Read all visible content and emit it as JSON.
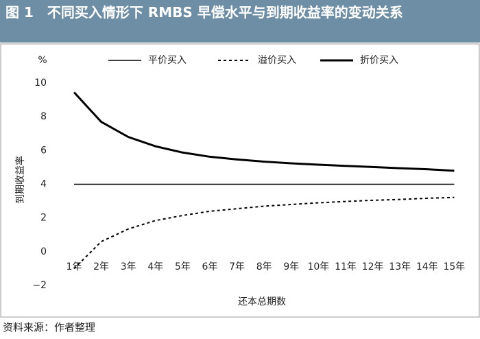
{
  "chart_data": {
    "type": "line",
    "title": "图 1　不同买入情形下 RMBS 早偿水平与到期收益率的变动关系",
    "y_unit": "%",
    "y_label": "到期收益率",
    "x_label": "还本总期数",
    "source": "资料来源：作者整理",
    "categories": [
      "1年",
      "2年",
      "3年",
      "4年",
      "5年",
      "6年",
      "7年",
      "8年",
      "9年",
      "10年",
      "11年",
      "12年",
      "13年",
      "14年",
      "15年"
    ],
    "series": [
      {
        "name": "平价买入",
        "color": "#000000",
        "dash": "solid",
        "linewidth": 1.5,
        "values": [
          4,
          4,
          4,
          4,
          4,
          4,
          4,
          4,
          4,
          4,
          4,
          4,
          4,
          4,
          4
        ]
      },
      {
        "name": "溢价买入",
        "color": "#000000",
        "dash": "dotted",
        "linewidth": 2,
        "values": [
          -1.0,
          0.6,
          1.35,
          1.85,
          2.15,
          2.4,
          2.55,
          2.7,
          2.8,
          2.9,
          2.98,
          3.05,
          3.1,
          3.17,
          3.22
        ]
      },
      {
        "name": "折价买入",
        "color": "#000000",
        "dash": "solid",
        "linewidth": 3,
        "values": [
          9.45,
          7.7,
          6.8,
          6.25,
          5.88,
          5.63,
          5.47,
          5.34,
          5.24,
          5.16,
          5.09,
          5.02,
          4.95,
          4.89,
          4.8
        ]
      }
    ],
    "ylim": [
      -2,
      10
    ],
    "yticks": [
      {
        "value": -2,
        "label": "−2"
      },
      0,
      2,
      4,
      6,
      8,
      10
    ],
    "grid": false,
    "legend": "top"
  }
}
